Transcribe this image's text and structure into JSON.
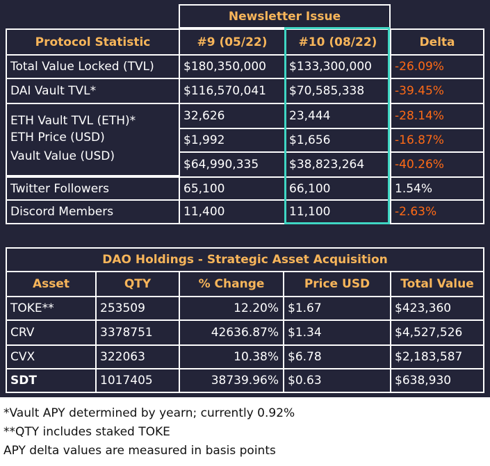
{
  "newsletter": {
    "group_header": "Newsletter Issue",
    "headers": [
      "Protocol Statistic",
      "#9 (05/22)",
      "#10 (08/22)",
      "Delta"
    ],
    "rows": [
      {
        "stat": "Total Value Locked (TVL)",
        "issue9": "$180,350,000",
        "issue10": "$133,300,000",
        "delta": "-26.09%"
      },
      {
        "stat": "DAI Vault TVL*",
        "issue9": "$116,570,041",
        "issue10": "$70,585,338",
        "delta": "-39.45%"
      },
      {
        "stat": "ETH Vault TVL (ETH)*",
        "issue9": "32,626",
        "issue10": "23,444",
        "delta": "-28.14%"
      },
      {
        "stat": "ETH Price (USD)",
        "issue9": "$1,992",
        "issue10": "$1,656",
        "delta": "-16.87%"
      },
      {
        "stat": "Vault Value (USD)",
        "issue9": "$64,990,335",
        "issue10": "$38,823,264",
        "delta": "-40.26%"
      },
      {
        "stat": "Twitter Followers",
        "issue9": "65,100",
        "issue10": "66,100",
        "delta": "1.54%"
      },
      {
        "stat": "Discord Members",
        "issue9": "11,400",
        "issue10": "11,100",
        "delta": "-2.63%"
      }
    ]
  },
  "holdings": {
    "title": "DAO Holdings - Strategic Asset Acquisition",
    "headers": [
      "Asset",
      "QTY",
      "% Change",
      "Price USD",
      "Total Value"
    ],
    "rows": [
      {
        "asset": "TOKE**",
        "qty": "253509",
        "change": "12.20%",
        "price": "$1.67",
        "total": "$423,360"
      },
      {
        "asset": "CRV",
        "qty": "3378751",
        "change": "42636.87%",
        "price": "$1.34",
        "total": "$4,527,526"
      },
      {
        "asset": "CVX",
        "qty": "322063",
        "change": "10.38%",
        "price": "$6.78",
        "total": "$2,183,587"
      },
      {
        "asset": "SDT",
        "qty": "1017405",
        "change": "38739.96%",
        "price": "$0.63",
        "total": "$638,930"
      }
    ]
  },
  "footnotes": [
    "*Vault APY determined by yearn; currently 0.92%",
    "**QTY includes staked TOKE",
    "APY delta values are measured in basis points"
  ],
  "colors": {
    "background": "#232438",
    "header_text": "#f7b55a",
    "negative_delta": "#ff6a16",
    "highlight_border": "#3fd6c3",
    "border": "#ffffff"
  }
}
